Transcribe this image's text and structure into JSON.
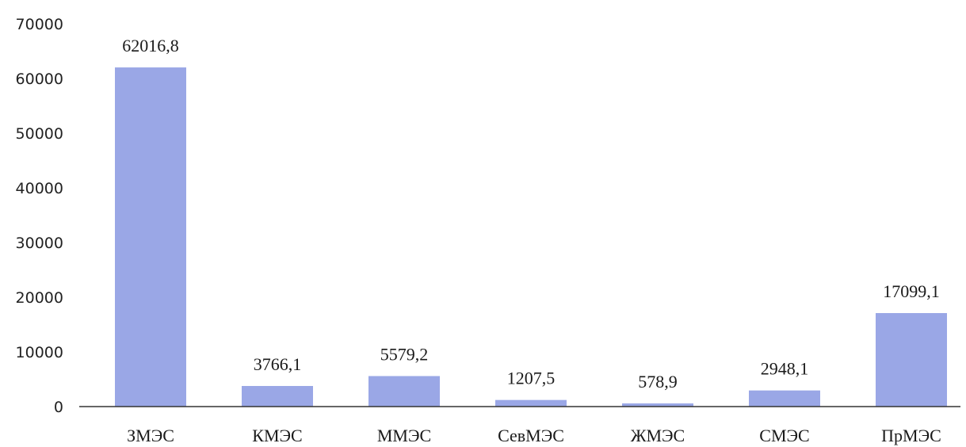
{
  "chart_data": {
    "type": "bar",
    "categories": [
      "ЗМЭС",
      "КМЭС",
      "ММЭС",
      "СевМЭС",
      "ЖМЭС",
      "СМЭС",
      "ПрМЭС"
    ],
    "values": [
      62016.8,
      3766.1,
      5579.2,
      1207.5,
      578.9,
      2948.1,
      17099.1
    ],
    "data_labels": [
      "62016,8",
      "3766,1",
      "5579,2",
      "1207,5",
      "578,9",
      "2948,1",
      "17099,1"
    ],
    "y_ticks": [
      0,
      10000,
      20000,
      30000,
      40000,
      50000,
      60000,
      70000
    ],
    "ylim": [
      0,
      70000
    ],
    "title": "",
    "xlabel": "",
    "ylabel": "",
    "grid": false,
    "legend": "none",
    "bar_color": "#9aa7e6",
    "axis_color": "#333333"
  }
}
